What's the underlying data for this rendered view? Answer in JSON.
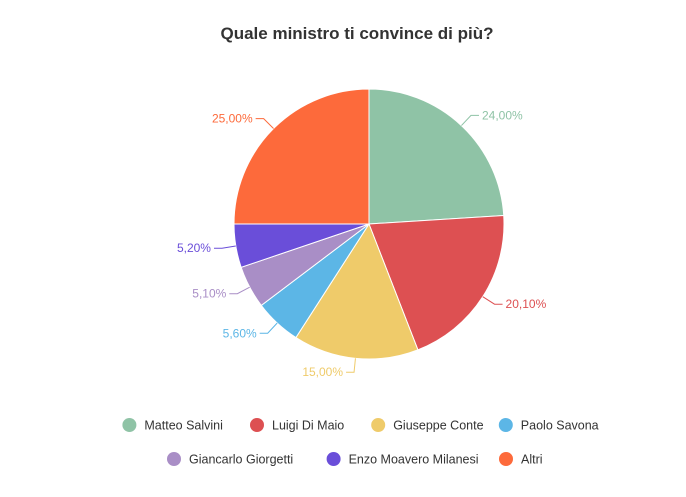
{
  "chart_data": {
    "type": "pie",
    "title": "Quale ministro ti convince di più?",
    "slices": [
      {
        "label": "Matteo Salvini",
        "value": 24.0,
        "display": "24,00%",
        "color": "#8fc3a6"
      },
      {
        "label": "Luigi Di Maio",
        "value": 20.1,
        "display": "20,10%",
        "color": "#dd5052"
      },
      {
        "label": "Giuseppe Conte",
        "value": 15.0,
        "display": "15,00%",
        "color": "#efcb6a"
      },
      {
        "label": "Paolo Savona",
        "value": 5.6,
        "display": "5,60%",
        "color": "#5cb6e6"
      },
      {
        "label": "Giancarlo Giorgetti",
        "value": 5.1,
        "display": "5,10%",
        "color": "#a98ec6"
      },
      {
        "label": "Enzo Moavero Milanesi",
        "value": 5.2,
        "display": "5,20%",
        "color": "#6a4ed9"
      },
      {
        "label": "Altri",
        "value": 25.0,
        "display": "25,00%",
        "color": "#fd6a3b"
      }
    ],
    "legend_position": "bottom"
  }
}
